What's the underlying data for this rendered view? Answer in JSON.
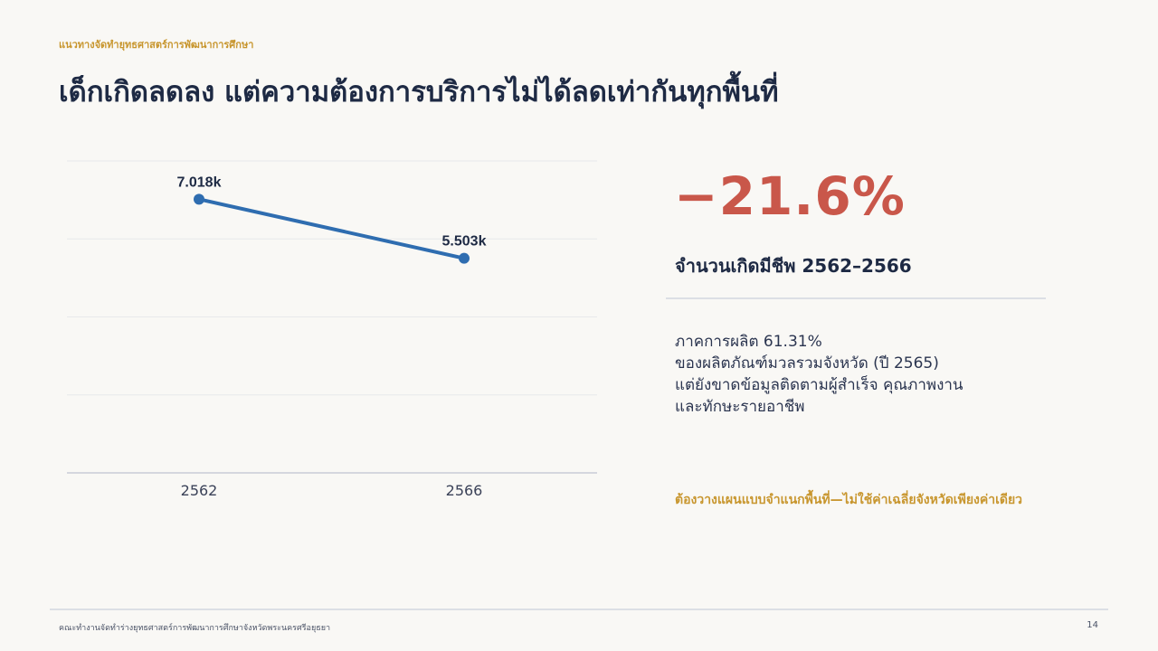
{
  "header": {
    "kicker": "แนวทางจัดทำยุทธศาสตร์การพัฒนาการศึกษา",
    "title": "เด็กเกิดลดลง แต่ความต้องการบริการไม่ได้ลดเท่ากันทุกพื้นที่"
  },
  "stat": {
    "value": "−21.6%",
    "label": "จำนวนเกิดมีชีพ 2562–2566"
  },
  "description": {
    "lines": [
      "ภาคการผลิต 61.31%",
      "ของผลิตภัณฑ์มวลรวมจังหวัด (ปี 2565)",
      "แต่ยังขาดข้อมูลติดตามผู้สำเร็จ คุณภาพงาน",
      "และทักษะรายอาชีพ"
    ]
  },
  "callout": "ต้องวางแผนแบบจำแนกพื้นที่—ไม่ใช้ค่าเฉลี่ยจังหวัดเพียงค่าเดียว",
  "footer": {
    "text": "คณะทำงานจัดทำร่างยุทธศาสตร์การพัฒนาการศึกษาจังหวัดพระนครศรีอยุธยา",
    "page": "14"
  },
  "colors": {
    "accent": "#c8962e",
    "negative": "#c9574a",
    "line": "#2f6db0",
    "text": "#1e2a44"
  },
  "chart_data": {
    "type": "line",
    "categories": [
      "2562",
      "2566"
    ],
    "series": [
      {
        "values": [
          7018,
          5503
        ],
        "labels": [
          "7.018k",
          "5.503k"
        ]
      }
    ],
    "ylim": [
      0,
      8000
    ],
    "grid": true,
    "title": "",
    "xlabel": "",
    "ylabel": ""
  }
}
